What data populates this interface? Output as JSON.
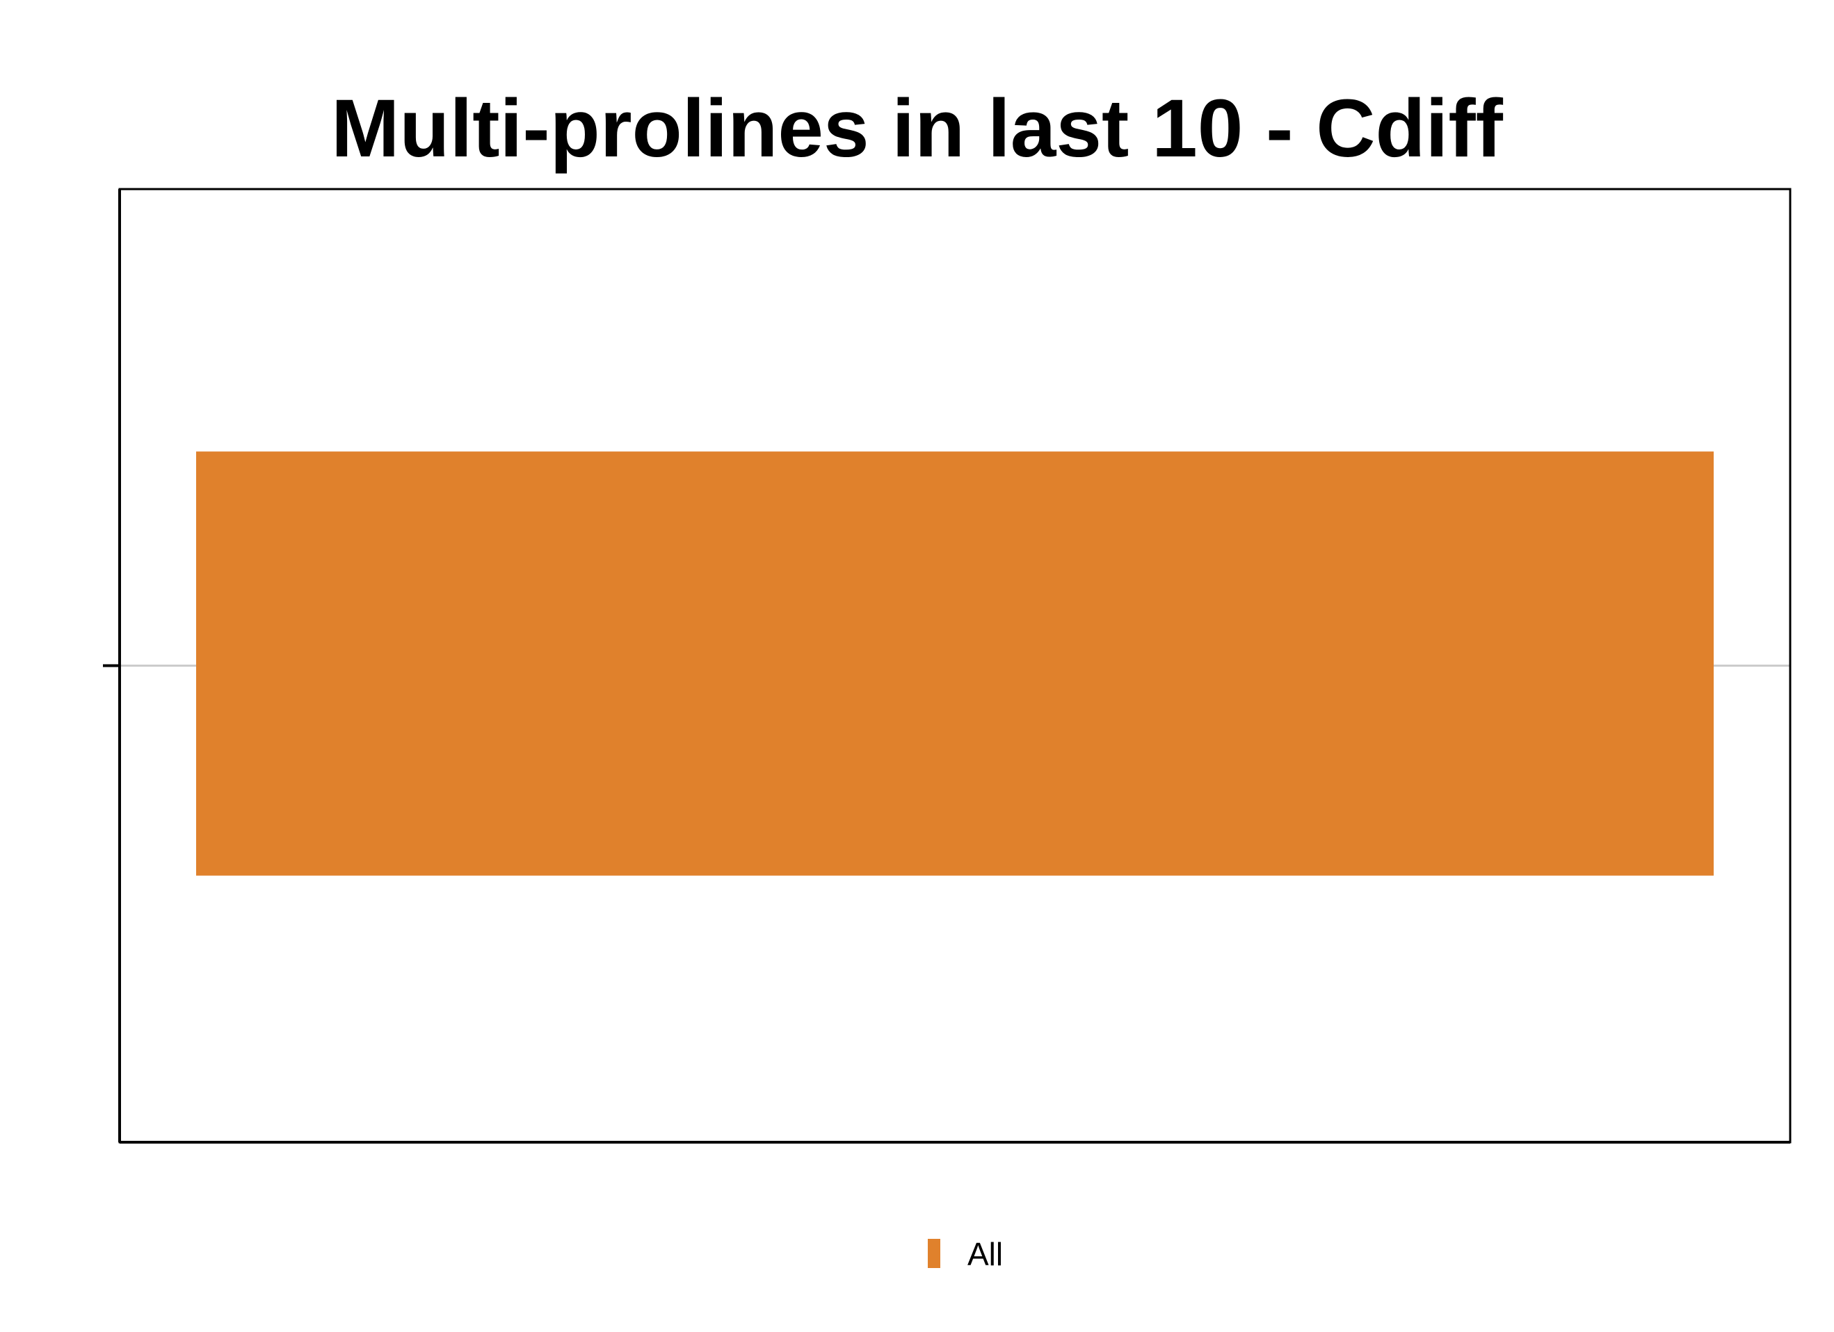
{
  "chart_data": {
    "type": "bar",
    "title": "Multi-prolines in last 10 - Cdiff",
    "xlabel": "",
    "ylabel": "",
    "categories": [
      ""
    ],
    "series": [
      {
        "name": "All",
        "values": [
          1
        ],
        "color": "#E0812C"
      }
    ],
    "ylim": [
      0,
      2
    ],
    "orientation": "horizontal",
    "grid": true,
    "legend_position": "bottom-center"
  }
}
